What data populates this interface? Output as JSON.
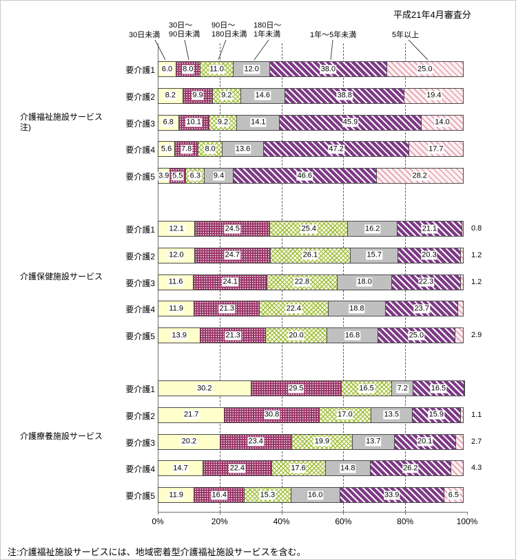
{
  "title": "平成21年4月審査分",
  "note": "注:介護福祉施設サービスには、地域密着型介護福祉施設サービスを含む。",
  "x_axis": {
    "ticks": [
      "0%",
      "20%",
      "40%",
      "60%",
      "80%",
      "100%"
    ],
    "range": [
      0,
      100
    ]
  },
  "legend": [
    {
      "name": "30日未満",
      "lines": [
        "30日未満"
      ]
    },
    {
      "name": "30日〜90日未満",
      "lines": [
        "30日〜",
        "90日未満"
      ]
    },
    {
      "name": "90日〜180日未満",
      "lines": [
        "90日〜",
        "180日未満"
      ]
    },
    {
      "name": "180日〜1年未満",
      "lines": [
        "180日〜",
        "1年未満"
      ]
    },
    {
      "name": "1年〜5年未満",
      "lines": [
        "1年〜5年未満"
      ]
    },
    {
      "name": "5年以上",
      "lines": [
        "5年以上"
      ]
    }
  ],
  "series_styles": [
    {
      "name": "30日未満",
      "pattern": "solid",
      "color": "#FFFFCC"
    },
    {
      "name": "30日〜90日未満",
      "pattern": "white-dots-on-purple",
      "color": "#993366"
    },
    {
      "name": "90日〜180日未満",
      "pattern": "green-crosshatch",
      "color": "#96B92D"
    },
    {
      "name": "180日〜1年未満",
      "pattern": "solid",
      "color": "#C0C0C0"
    },
    {
      "name": "1年〜5年未満",
      "pattern": "purple-diagonal-stripe",
      "color": "#7E3A86"
    },
    {
      "name": "5年以上",
      "pattern": "pink-diagonal-stripe-light",
      "color": "#E59DB2"
    }
  ],
  "chart_data": {
    "type": "bar",
    "stacked": true,
    "orientation": "horizontal",
    "unit": "%",
    "title": "平成21年4月審査分",
    "xlabel": "",
    "ylabel": "",
    "xlim": [
      0,
      100
    ],
    "x_ticks": [
      "0%",
      "20%",
      "40%",
      "60%",
      "80%",
      "100%"
    ],
    "legend_position": "top",
    "grid": "dashed-vertical-every-20pct",
    "series_labels": [
      "30日未満",
      "30日〜90日未満",
      "90日〜180日未満",
      "180日〜1年未満",
      "1年〜5年未満",
      "5年以上"
    ],
    "groups": [
      {
        "label_lines": [
          "介護福祉施設サービス",
          "注)"
        ],
        "rows": [
          {
            "label": "要介護1",
            "values": [
              6.0,
              8.0,
              11.0,
              12.0,
              38.0,
              25.0
            ],
            "labels": [
              "6.0",
              "8.0",
              "11.0",
              "12.0",
              "38.0",
              "25.0"
            ],
            "outside_label": ""
          },
          {
            "label": "要介護2",
            "values": [
              8.2,
              9.9,
              9.2,
              14.6,
              38.8,
              19.4
            ],
            "labels": [
              "8.2",
              "9.9",
              "9.2",
              "14.6",
              "38.8",
              "19.4"
            ],
            "outside_label": ""
          },
          {
            "label": "要介護3",
            "values": [
              6.8,
              10.1,
              9.2,
              14.1,
              45.9,
              14.0
            ],
            "labels": [
              "6.8",
              "10.1",
              "9.2",
              "14.1",
              "45.9",
              "14.0"
            ],
            "outside_label": ""
          },
          {
            "label": "要介護4",
            "values": [
              5.6,
              7.8,
              8.0,
              13.6,
              47.2,
              17.7
            ],
            "labels": [
              "5.6",
              "7.8",
              "8.0",
              "13.6",
              "47.2",
              "17.7"
            ],
            "outside_label": ""
          },
          {
            "label": "要介護5",
            "values": [
              3.9,
              5.5,
              6.3,
              9.4,
              46.6,
              28.2
            ],
            "labels": [
              "3.9",
              "5.5",
              "6.3",
              "9.4",
              "46.6",
              "28.2"
            ],
            "outside_label": ""
          }
        ]
      },
      {
        "label_lines": [
          "介護保健施設サービス"
        ],
        "rows": [
          {
            "label": "要介護1",
            "values": [
              12.1,
              24.5,
              25.4,
              16.2,
              21.1,
              0.8
            ],
            "labels": [
              "12.1",
              "24.5",
              "25.4",
              "16.2",
              "21.1",
              ""
            ],
            "outside_label": "0.8"
          },
          {
            "label": "要介護2",
            "values": [
              12.0,
              24.7,
              26.1,
              15.7,
              20.3,
              1.2
            ],
            "labels": [
              "12.0",
              "24.7",
              "26.1",
              "15.7",
              "20.3",
              ""
            ],
            "outside_label": "1.2"
          },
          {
            "label": "要介護3",
            "values": [
              11.6,
              24.1,
              22.8,
              18.0,
              22.3,
              1.2
            ],
            "labels": [
              "11.6",
              "24.1",
              "22.8",
              "18.0",
              "22.3",
              ""
            ],
            "outside_label": "1.2"
          },
          {
            "label": "要介護4",
            "values": [
              11.9,
              21.3,
              22.4,
              18.8,
              23.7,
              1.9
            ],
            "labels": [
              "11.9",
              "21.3",
              "22.4",
              "18.8",
              "23.7",
              ""
            ],
            "outside_label": ""
          },
          {
            "label": "要介護5",
            "values": [
              13.9,
              21.3,
              20.0,
              16.8,
              25.0,
              2.9
            ],
            "labels": [
              "13.9",
              "21.3",
              "20.0",
              "16.8",
              "25.0",
              ""
            ],
            "outside_label": "2.9"
          }
        ]
      },
      {
        "label_lines": [
          "介護療養施設サービス"
        ],
        "rows": [
          {
            "label": "要介護1",
            "values": [
              30.2,
              29.5,
              16.5,
              7.2,
              16.5,
              0.1
            ],
            "labels": [
              "30.2",
              "29.5",
              "16.5",
              "7.2",
              "16.5",
              ""
            ],
            "outside_label": ""
          },
          {
            "label": "要介護2",
            "values": [
              21.7,
              30.8,
              17.0,
              13.5,
              15.9,
              1.1
            ],
            "labels": [
              "21.7",
              "30.8",
              "17.0",
              "13.5",
              "15.9",
              ""
            ],
            "outside_label": "1.1"
          },
          {
            "label": "要介護3",
            "values": [
              20.2,
              23.4,
              19.9,
              13.7,
              20.1,
              2.7
            ],
            "labels": [
              "20.2",
              "23.4",
              "19.9",
              "13.7",
              "20.1",
              ""
            ],
            "outside_label": "2.7"
          },
          {
            "label": "要介護4",
            "values": [
              14.7,
              22.4,
              17.6,
              14.8,
              26.2,
              4.3
            ],
            "labels": [
              "14.7",
              "22.4",
              "17.6",
              "14.8",
              "26.2",
              ""
            ],
            "outside_label": "4.3"
          },
          {
            "label": "要介護5",
            "values": [
              11.9,
              16.4,
              15.3,
              16.0,
              33.9,
              6.5
            ],
            "labels": [
              "11.9",
              "16.4",
              "15.3",
              "16.0",
              "33.9",
              "6.5"
            ],
            "outside_label": ""
          }
        ]
      }
    ]
  }
}
